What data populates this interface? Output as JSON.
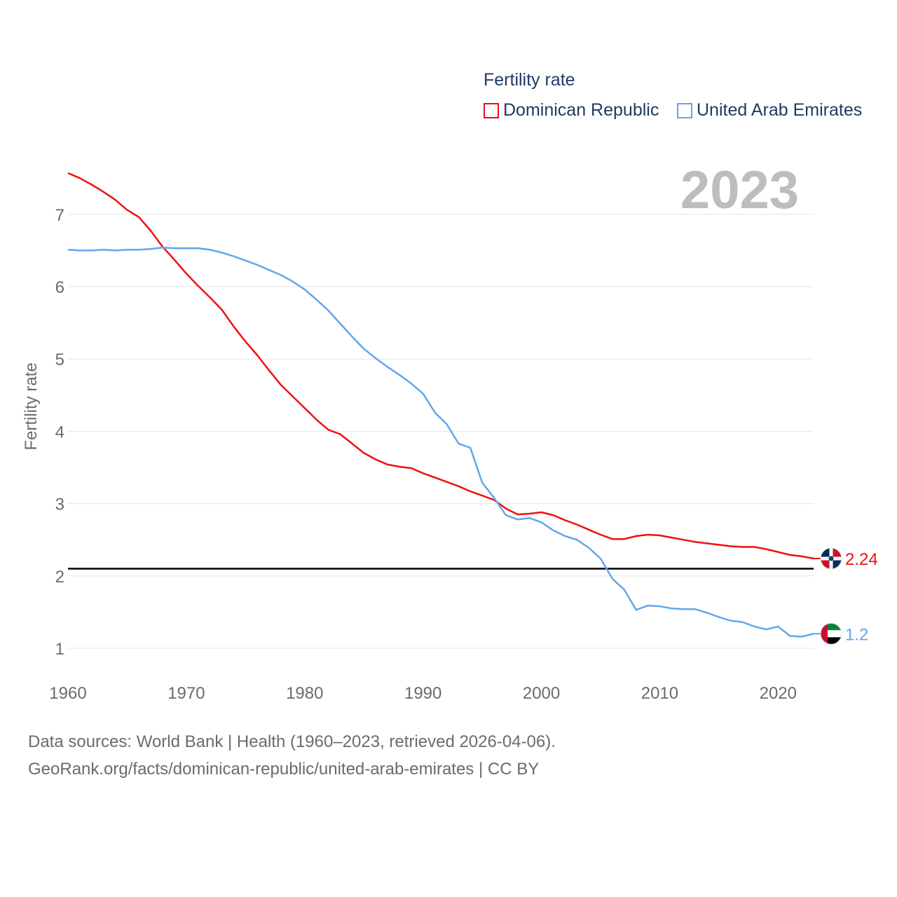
{
  "legend": {
    "title": "Fertility rate",
    "items": [
      {
        "name": "Dominican Republic",
        "color": "#ee1111"
      },
      {
        "name": "United Arab Emirates",
        "color": "#63a6ea"
      }
    ]
  },
  "current_year": "2023",
  "footer": {
    "line1": "Data sources: World Bank | Health (1960–2023, retrieved 2026-04-06).",
    "line2": "GeoRank.org/facts/dominican-republic/united-arab-emirates | CC BY"
  },
  "chart_data": {
    "type": "line",
    "title": "Fertility rate",
    "xlabel": "",
    "ylabel": "Fertility rate",
    "xlim": [
      1960,
      2023
    ],
    "ylim": [
      0.6,
      7.6
    ],
    "x_ticks": [
      1960,
      1970,
      1980,
      1990,
      2000,
      2010,
      2020
    ],
    "y_ticks": [
      1,
      2,
      3,
      4,
      5,
      6,
      7
    ],
    "reference_line": {
      "y": 2.1,
      "color": "#000000"
    },
    "x": [
      1960,
      1961,
      1962,
      1963,
      1964,
      1965,
      1966,
      1967,
      1968,
      1969,
      1970,
      1971,
      1972,
      1973,
      1974,
      1975,
      1976,
      1977,
      1978,
      1979,
      1980,
      1981,
      1982,
      1983,
      1984,
      1985,
      1986,
      1987,
      1988,
      1989,
      1990,
      1991,
      1992,
      1993,
      1994,
      1995,
      1996,
      1997,
      1998,
      1999,
      2000,
      2001,
      2002,
      2003,
      2004,
      2005,
      2006,
      2007,
      2008,
      2009,
      2010,
      2011,
      2012,
      2013,
      2014,
      2015,
      2016,
      2017,
      2018,
      2019,
      2020,
      2021,
      2022,
      2023
    ],
    "series": [
      {
        "name": "Dominican Republic",
        "color": "#ee1111",
        "end_label": "2.24",
        "values": [
          7.57,
          7.5,
          7.41,
          7.31,
          7.2,
          7.06,
          6.96,
          6.77,
          6.55,
          6.37,
          6.18,
          6.01,
          5.85,
          5.68,
          5.45,
          5.24,
          5.05,
          4.84,
          4.64,
          4.48,
          4.32,
          4.16,
          4.02,
          3.96,
          3.83,
          3.7,
          3.61,
          3.54,
          3.51,
          3.49,
          3.42,
          3.36,
          3.3,
          3.24,
          3.17,
          3.11,
          3.05,
          2.93,
          2.85,
          2.86,
          2.88,
          2.84,
          2.77,
          2.71,
          2.64,
          2.57,
          2.51,
          2.51,
          2.55,
          2.57,
          2.56,
          2.53,
          2.5,
          2.47,
          2.45,
          2.43,
          2.41,
          2.4,
          2.4,
          2.37,
          2.33,
          2.29,
          2.27,
          2.24
        ]
      },
      {
        "name": "United Arab Emirates",
        "color": "#63a6ea",
        "end_label": "1.2",
        "values": [
          6.51,
          6.5,
          6.5,
          6.51,
          6.5,
          6.51,
          6.51,
          6.52,
          6.54,
          6.53,
          6.53,
          6.53,
          6.51,
          6.47,
          6.42,
          6.36,
          6.3,
          6.23,
          6.16,
          6.07,
          5.96,
          5.82,
          5.67,
          5.49,
          5.31,
          5.14,
          5.01,
          4.89,
          4.78,
          4.66,
          4.52,
          4.26,
          4.1,
          3.83,
          3.77,
          3.29,
          3.08,
          2.84,
          2.78,
          2.8,
          2.74,
          2.63,
          2.55,
          2.5,
          2.39,
          2.24,
          1.96,
          1.81,
          1.53,
          1.59,
          1.58,
          1.55,
          1.54,
          1.54,
          1.49,
          1.43,
          1.38,
          1.36,
          1.3,
          1.26,
          1.3,
          1.17,
          1.16,
          1.2
        ]
      }
    ]
  }
}
